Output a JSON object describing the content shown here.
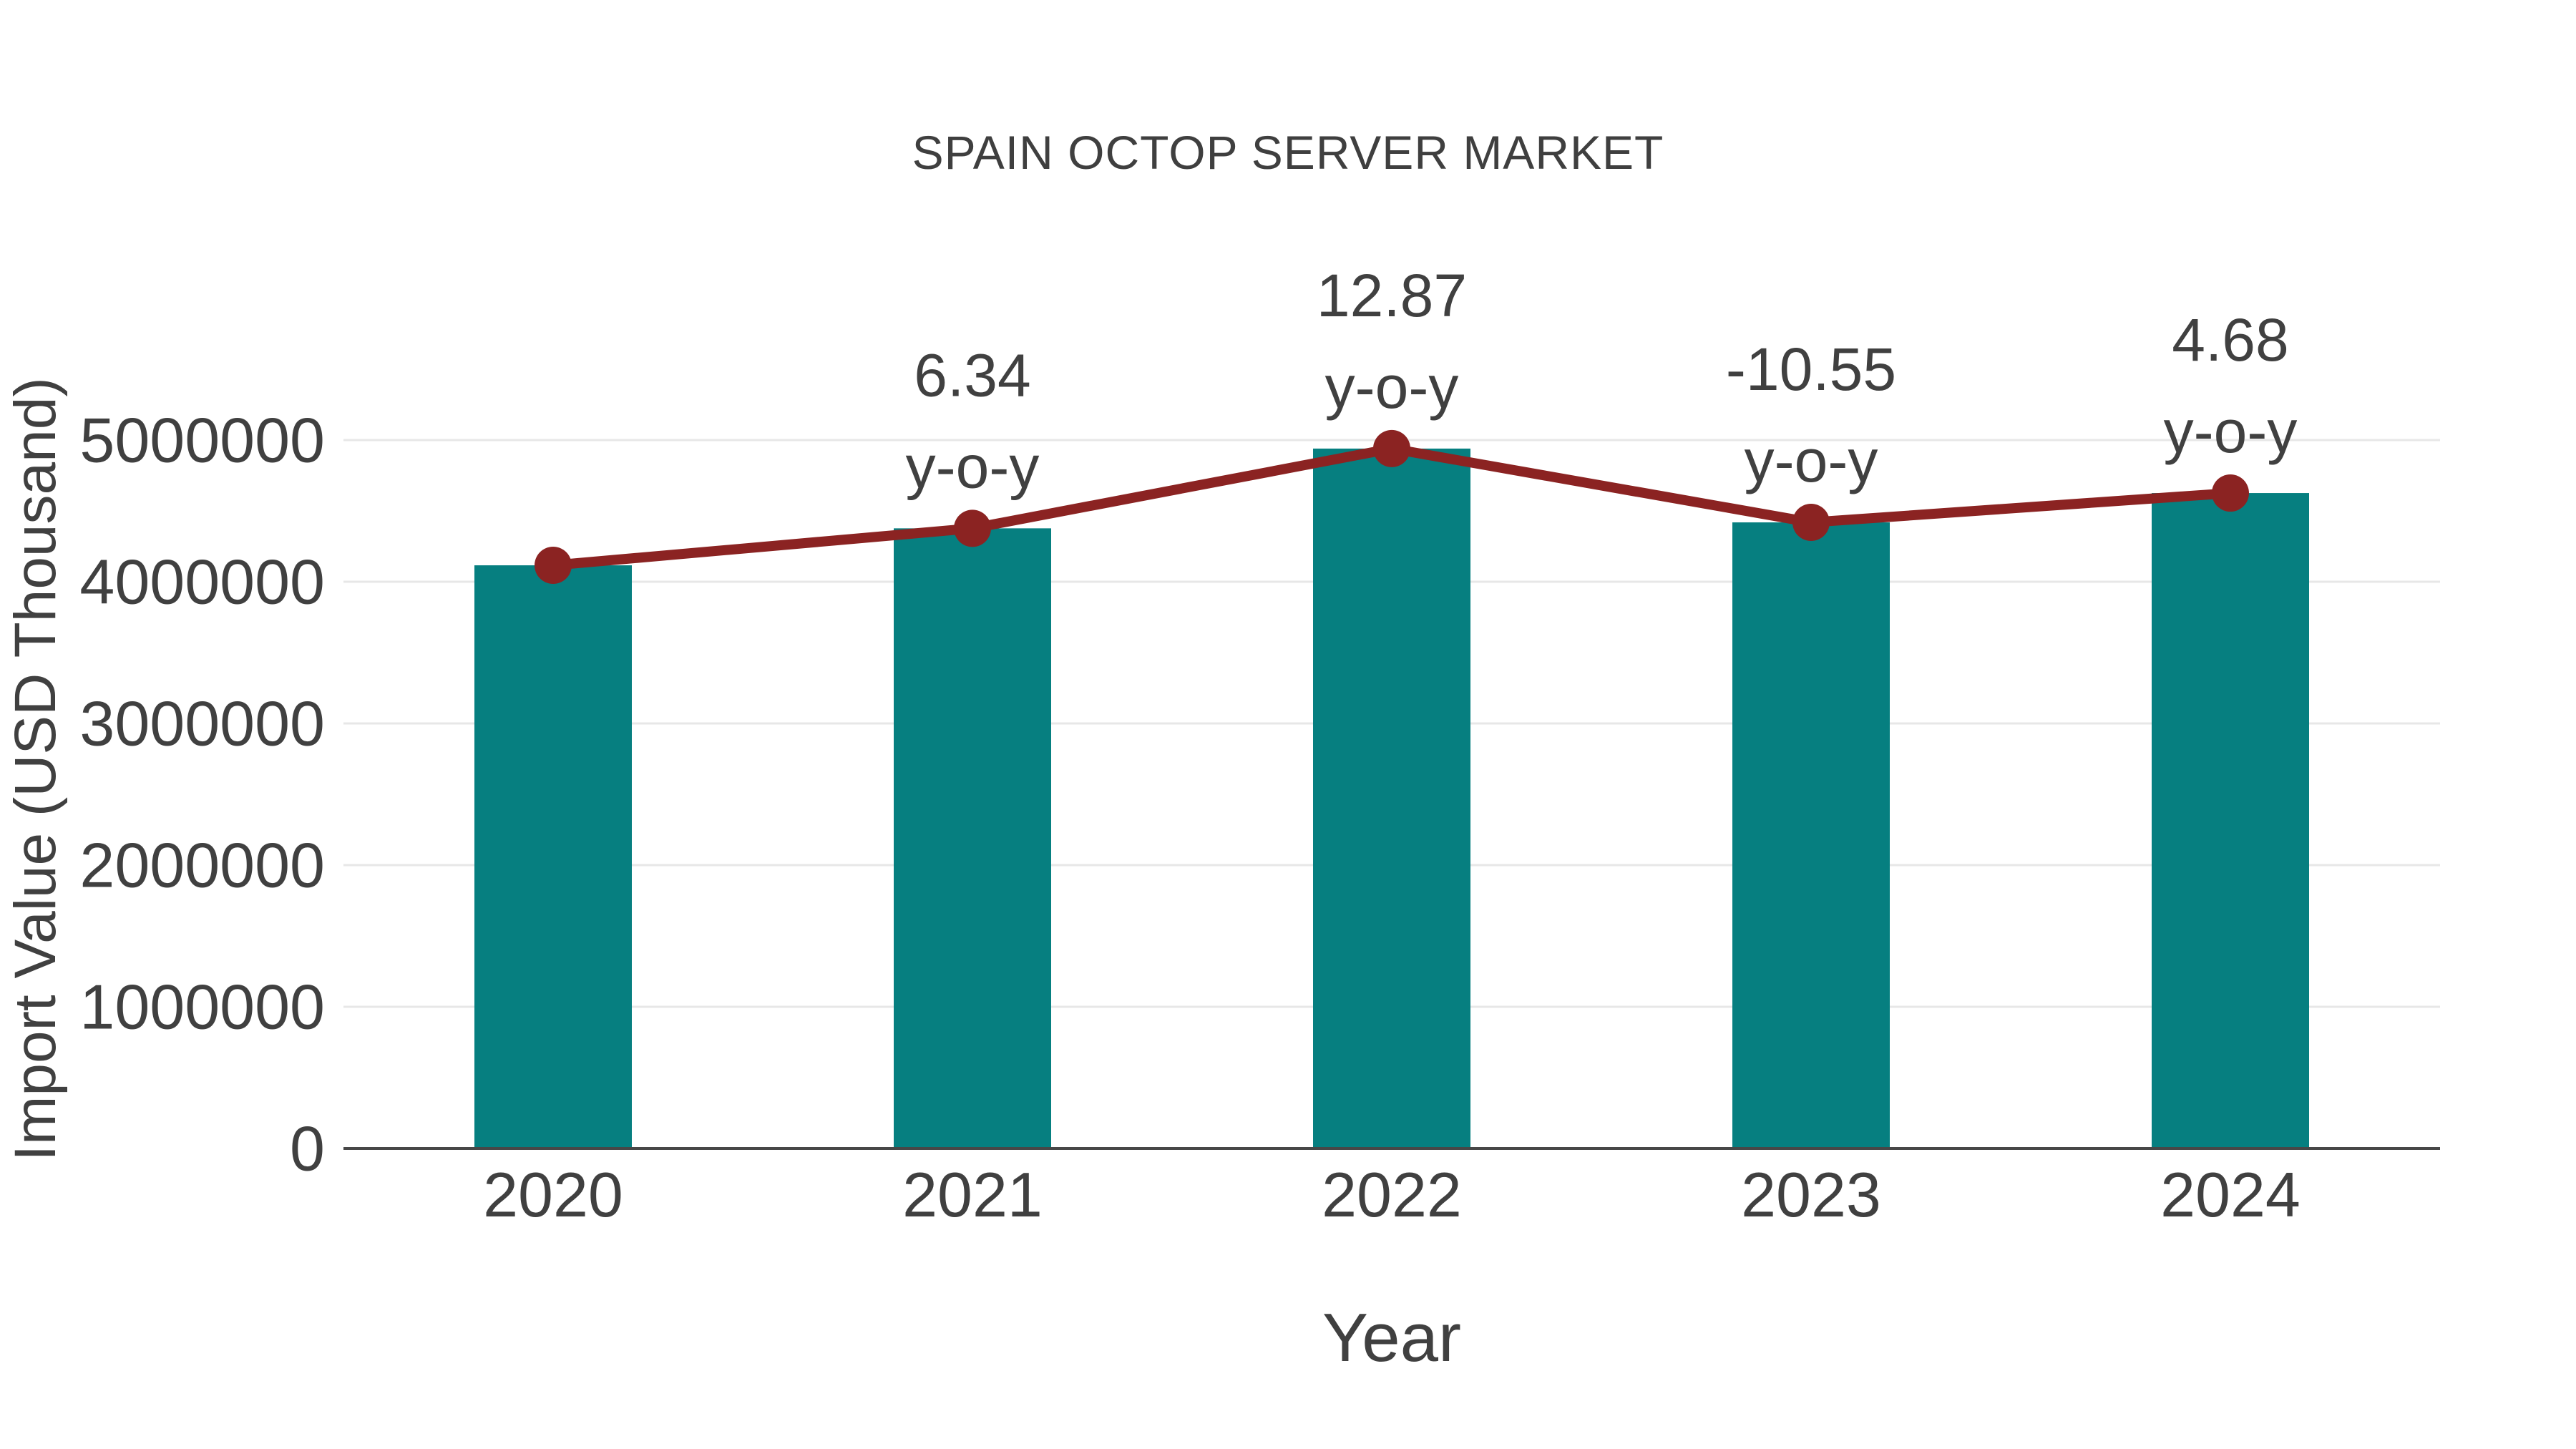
{
  "chart_data": {
    "type": "bar",
    "title": "SPAIN OCTOP SERVER MARKET",
    "xlabel": "Year",
    "ylabel": "Import Value (USD Thousand)",
    "categories": [
      "2020",
      "2021",
      "2022",
      "2023",
      "2024"
    ],
    "series": [
      {
        "name": "Import Value (USD Thousand)",
        "type": "bar",
        "values": [
          4116000,
          4377000,
          4940000,
          4419000,
          4626000
        ],
        "color": "#067F80"
      },
      {
        "name": "y-o-y",
        "type": "line",
        "values": [
          4116000,
          4377000,
          4940000,
          4419000,
          4626000
        ],
        "color": "#8B2322"
      }
    ],
    "annotations": [
      {
        "category": "2021",
        "label": "6.34",
        "sub_label": "y-o-y",
        "pct": 6.34
      },
      {
        "category": "2022",
        "label": "12.87",
        "sub_label": "y-o-y",
        "pct": 12.87
      },
      {
        "category": "2023",
        "label": "-10.55",
        "sub_label": "y-o-y",
        "pct": -10.55
      },
      {
        "category": "2024",
        "label": "4.68",
        "sub_label": "y-o-y",
        "pct": 4.68
      }
    ],
    "ylim": [
      0,
      5000000
    ],
    "yticks": [
      0,
      1000000,
      2000000,
      3000000,
      4000000,
      5000000
    ],
    "grid": true,
    "legend": "none",
    "colors": {
      "bar": "#067F80",
      "line": "#8B2322",
      "marker": "#8B2322",
      "gridline": "#E7E7E7",
      "axis_line": "#474747",
      "tick_text": "#404040",
      "title_text": "#3f3f3f"
    }
  }
}
